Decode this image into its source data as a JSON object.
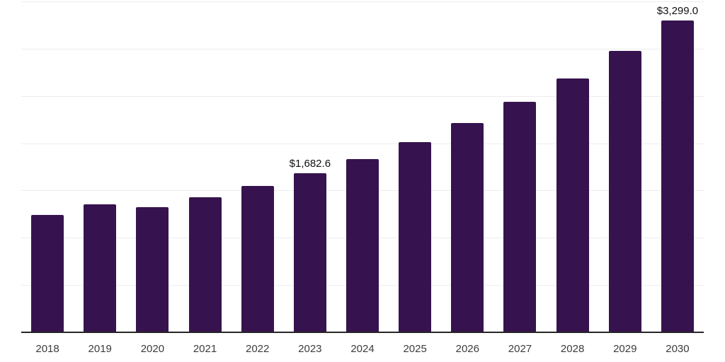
{
  "chart_data": {
    "type": "bar",
    "title": "",
    "xlabel": "",
    "ylabel": "",
    "categories": [
      "2018",
      "2019",
      "2020",
      "2021",
      "2022",
      "2023",
      "2024",
      "2025",
      "2026",
      "2027",
      "2028",
      "2029",
      "2030"
    ],
    "values": [
      1245,
      1350,
      1325,
      1425,
      1545,
      1682.6,
      1830,
      2013,
      2215,
      2440,
      2687,
      2980,
      3299
    ],
    "labeled_points": [
      {
        "category": "2023",
        "label": "$1,682.6"
      },
      {
        "category": "2030",
        "label": "$3,299.0"
      }
    ],
    "ylim": [
      0,
      3500
    ],
    "grid_step": 500,
    "grid": "horizontal-only",
    "legend": "none",
    "y_axis_labels_visible": false,
    "bar_color": "#36134e"
  },
  "colors": {
    "background": "#ffffff",
    "bar": "#36134e",
    "gridline": "#ededed",
    "axis_line": "#262626",
    "tick_label": "#3b3b3b",
    "value_label": "#111111"
  }
}
